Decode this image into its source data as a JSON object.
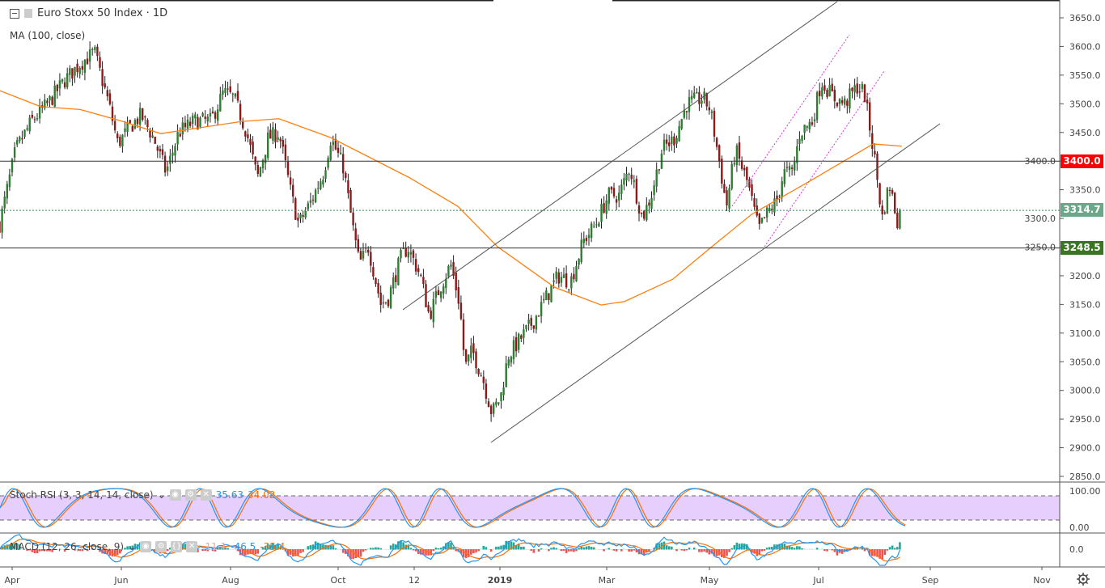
{
  "header": {
    "symbol_title": "Euro Stoxx 50 Index · 1D",
    "ma_label": "MA (100, close)"
  },
  "stoch": {
    "label": "Stoch RSI (3, 3, 14, 14, close)",
    "k_value": "35.63",
    "d_value": "34.02",
    "axis": [
      "100.00",
      "0.00"
    ],
    "k_color": "#2196f3",
    "d_color": "#ff6d00"
  },
  "macd": {
    "label": "MACD (12, 26, close, 9)",
    "hist_value": "-11.1",
    "macd_value": "-46.5",
    "signal_value": "-35.4",
    "axis": [
      "0.0"
    ]
  },
  "price_tags": {
    "resistance": "3400.0",
    "last": "3314.7",
    "support": "3248.5"
  },
  "colors": {
    "up": "#26a69a",
    "down": "#ef5350",
    "candle_up": "#2e7d32",
    "candle_down": "#8b1a1a",
    "ma": "#ff7f0e",
    "resistance_tag": "#ff0000",
    "last_tag": "#6aa889",
    "support_tag": "#3a7521"
  },
  "chart_data": {
    "type": "candlestick",
    "title": "Euro Stoxx 50 Index · 1D",
    "ylim": [
      2820,
      3680
    ],
    "y_ticks": [
      "3650.0",
      "3600.0",
      "3550.0",
      "3500.0",
      "3450.0",
      "3400.0",
      "3350.0",
      "3300.0",
      "3250.0",
      "3200.0",
      "3150.0",
      "3100.0",
      "3050.0",
      "3000.0",
      "2950.0",
      "2900.0",
      "2850.0"
    ],
    "x_ticks": [
      "Apr",
      "Jun",
      "Aug",
      "Oct",
      "12",
      "2019",
      "Mar",
      "May",
      "Jul",
      "Sep",
      "Nov"
    ],
    "price_path": [
      [
        "2018-03-25",
        3290
      ],
      [
        "2018-04-03",
        3420
      ],
      [
        "2018-04-12",
        3470
      ],
      [
        "2018-04-21",
        3500
      ],
      [
        "2018-04-30",
        3540
      ],
      [
        "2018-05-09",
        3570
      ],
      [
        "2018-05-17",
        3590
      ],
      [
        "2018-05-25",
        3500
      ],
      [
        "2018-05-30",
        3430
      ],
      [
        "2018-06-06",
        3460
      ],
      [
        "2018-06-12",
        3480
      ],
      [
        "2018-06-19",
        3440
      ],
      [
        "2018-06-26",
        3380
      ],
      [
        "2018-07-03",
        3450
      ],
      [
        "2018-07-12",
        3470
      ],
      [
        "2018-07-21",
        3470
      ],
      [
        "2018-07-28",
        3520
      ],
      [
        "2018-08-03",
        3510
      ],
      [
        "2018-08-10",
        3450
      ],
      [
        "2018-08-16",
        3370
      ],
      [
        "2018-08-22",
        3440
      ],
      [
        "2018-08-28",
        3450
      ],
      [
        "2018-09-04",
        3340
      ],
      [
        "2018-09-08",
        3290
      ],
      [
        "2018-09-15",
        3330
      ],
      [
        "2018-09-22",
        3380
      ],
      [
        "2018-09-26",
        3440
      ],
      [
        "2018-10-03",
        3390
      ],
      [
        "2018-10-08",
        3290
      ],
      [
        "2018-10-12",
        3220
      ],
      [
        "2018-10-17",
        3250
      ],
      [
        "2018-10-24",
        3150
      ],
      [
        "2018-10-28",
        3160
      ],
      [
        "2018-11-04",
        3230
      ],
      [
        "2018-11-08",
        3250
      ],
      [
        "2018-11-15",
        3200
      ],
      [
        "2018-11-20",
        3130
      ],
      [
        "2018-11-26",
        3180
      ],
      [
        "2018-12-02",
        3220
      ],
      [
        "2018-12-07",
        3150
      ],
      [
        "2018-12-10",
        3040
      ],
      [
        "2018-12-14",
        3070
      ],
      [
        "2018-12-20",
        3020
      ],
      [
        "2018-12-25",
        2960
      ],
      [
        "2018-12-30",
        2990
      ],
      [
        "2019-01-03",
        3060
      ],
      [
        "2019-01-10",
        3090
      ],
      [
        "2019-01-17",
        3120
      ],
      [
        "2019-01-24",
        3160
      ],
      [
        "2019-01-31",
        3200
      ],
      [
        "2019-02-07",
        3190
      ],
      [
        "2019-02-14",
        3260
      ],
      [
        "2019-02-21",
        3290
      ],
      [
        "2019-02-28",
        3340
      ],
      [
        "2019-03-06",
        3340
      ],
      [
        "2019-03-12",
        3390
      ],
      [
        "2019-03-19",
        3300
      ],
      [
        "2019-03-24",
        3340
      ],
      [
        "2019-03-30",
        3420
      ],
      [
        "2019-04-06",
        3440
      ],
      [
        "2019-04-13",
        3500
      ],
      [
        "2019-04-22",
        3510
      ],
      [
        "2019-04-26",
        3490
      ],
      [
        "2019-05-01",
        3400
      ],
      [
        "2019-05-05",
        3320
      ],
      [
        "2019-05-10",
        3420
      ],
      [
        "2019-05-17",
        3360
      ],
      [
        "2019-05-23",
        3280
      ],
      [
        "2019-05-28",
        3310
      ],
      [
        "2019-06-02",
        3330
      ],
      [
        "2019-06-06",
        3380
      ],
      [
        "2019-06-11",
        3380
      ],
      [
        "2019-06-15",
        3450
      ],
      [
        "2019-06-22",
        3470
      ],
      [
        "2019-06-27",
        3540
      ],
      [
        "2019-07-04",
        3510
      ],
      [
        "2019-07-10",
        3500
      ],
      [
        "2019-07-17",
        3530
      ],
      [
        "2019-07-21",
        3520
      ],
      [
        "2019-07-24",
        3460
      ],
      [
        "2019-07-27",
        3400
      ],
      [
        "2019-07-31",
        3300
      ],
      [
        "2019-08-04",
        3360
      ],
      [
        "2019-08-09",
        3290
      ],
      [
        "2019-08-11",
        3314.7
      ]
    ],
    "ma_100": [
      [
        "2018-03-25",
        3523
      ],
      [
        "2018-04-17",
        3495
      ],
      [
        "2018-05-09",
        3490
      ],
      [
        "2018-06-01",
        3470
      ],
      [
        "2018-06-23",
        3448
      ],
      [
        "2018-08-07",
        3469
      ],
      [
        "2018-08-28",
        3474
      ],
      [
        "2018-09-26",
        3441
      ],
      [
        "2018-11-09",
        3371
      ],
      [
        "2018-12-06",
        3321
      ],
      [
        "2018-12-28",
        3251
      ],
      [
        "2019-01-29",
        3180
      ],
      [
        "2019-02-24",
        3149
      ],
      [
        "2019-03-09",
        3155
      ],
      [
        "2019-04-05",
        3194
      ],
      [
        "2019-04-27",
        3251
      ],
      [
        "2019-05-19",
        3307
      ],
      [
        "2019-06-20",
        3364
      ],
      [
        "2019-07-26",
        3430
      ],
      [
        "2019-08-11",
        3426
      ]
    ]
  }
}
